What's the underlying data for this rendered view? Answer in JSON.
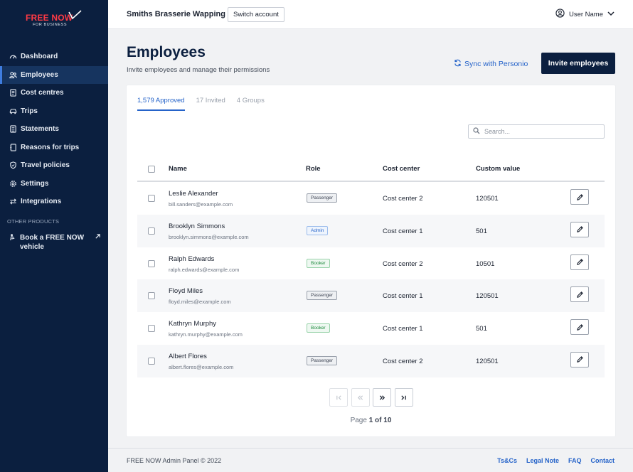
{
  "brand": {
    "logo_primary": "FREE NOW",
    "logo_secondary": "FOR BUSINESS",
    "accent_red": "#ff3a45"
  },
  "sidebar": {
    "items": [
      {
        "label": "Dashboard",
        "icon": "gauge-icon",
        "active": false
      },
      {
        "label": "Employees",
        "icon": "users-icon",
        "active": true
      },
      {
        "label": "Cost centres",
        "icon": "receipt-icon",
        "active": false
      },
      {
        "label": "Trips",
        "icon": "car-icon",
        "active": false
      },
      {
        "label": "Statements",
        "icon": "document-icon",
        "active": false
      },
      {
        "label": "Reasons for trips",
        "icon": "notebook-icon",
        "active": false
      },
      {
        "label": "Travel policies",
        "icon": "shield-icon",
        "active": false
      },
      {
        "label": "Settings",
        "icon": "gear-icon",
        "active": false
      },
      {
        "label": "Integrations",
        "icon": "arrows-icon",
        "active": false
      }
    ],
    "section_label": "OTHER PRODUCTS",
    "external_item": {
      "label": "Book a FREE NOW vehicle",
      "icon": "person-icon",
      "trailing_icon": "external-arrow-icon"
    }
  },
  "topbar": {
    "company": "Smiths Brasserie Wapping",
    "switch_label": "Switch account",
    "user_name": "User Name"
  },
  "header": {
    "title": "Employees",
    "subtitle": "Invite employees and manage their permissions",
    "sync_label": "Sync with Personio",
    "invite_label": "Invite employees"
  },
  "tabs": [
    {
      "label": "1,579 Approved",
      "active": true
    },
    {
      "label": "17 Invited",
      "active": false
    },
    {
      "label": "4 Groups",
      "active": false
    }
  ],
  "search": {
    "placeholder": "Search..."
  },
  "table": {
    "columns": {
      "name": "Name",
      "role": "Role",
      "cost_center": "Cost center",
      "custom_value": "Custom value"
    },
    "rows": [
      {
        "name": "Leslie Alexander",
        "email": "bill.sanders@example.com",
        "role": "Passenger",
        "cost_center": "Cost center 2",
        "custom_value": "120501"
      },
      {
        "name": "Brooklyn Simmons",
        "email": "brooklyn.simmons@example.com",
        "role": "Admin",
        "cost_center": "Cost center 1",
        "custom_value": "501"
      },
      {
        "name": "Ralph Edwards",
        "email": "ralph.edwards@example.com",
        "role": "Booker",
        "cost_center": "Cost center 2",
        "custom_value": "10501"
      },
      {
        "name": "Floyd Miles",
        "email": "floyd.miles@example.com",
        "role": "Passenger",
        "cost_center": "Cost center 1",
        "custom_value": "120501"
      },
      {
        "name": "Kathryn Murphy",
        "email": "kathryn.murphy@example.com",
        "role": "Booker",
        "cost_center": "Cost center 1",
        "custom_value": "501"
      },
      {
        "name": "Albert Flores",
        "email": "albert.flores@example.com",
        "role": "Passenger",
        "cost_center": "Cost center 2",
        "custom_value": "120501"
      }
    ]
  },
  "pagination": {
    "page_word": "Page",
    "current": "1 of 10"
  },
  "footer": {
    "copyright": "FREE NOW Admin Panel  © 2022",
    "links": [
      "Ts&Cs",
      "Legal Note",
      "FAQ",
      "Contact"
    ]
  },
  "colors": {
    "navy": "#0b1f3f",
    "link_blue": "#2563c9"
  }
}
